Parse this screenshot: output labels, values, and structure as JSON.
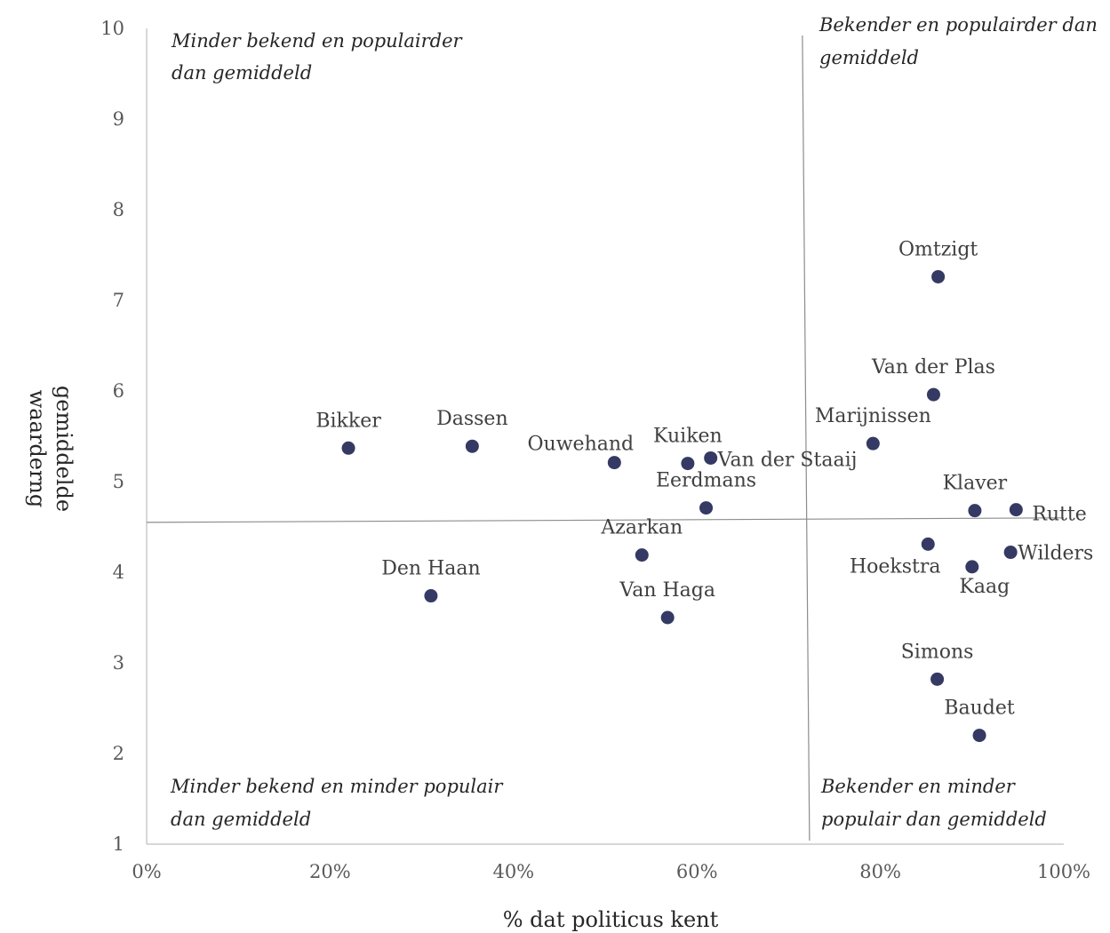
{
  "chart_data": {
    "type": "scatter",
    "xlabel": "% dat politicus kent",
    "ylabel": [
      "gemiddelde",
      "waarderng"
    ],
    "xlim": [
      0,
      100
    ],
    "ylim": [
      1,
      10
    ],
    "xticks": [
      "0%",
      "20%",
      "40%",
      "60%",
      "80%",
      "100%"
    ],
    "yticks": [
      "1",
      "2",
      "3",
      "4",
      "5",
      "6",
      "7",
      "8",
      "9",
      "10"
    ],
    "grid": false,
    "point_color": "#343A63",
    "line_color": "#8c8c8c",
    "reference_lines": {
      "x": 71.5,
      "y_left": 4.55,
      "y_right": 4.6
    },
    "quadrants": {
      "top_left": [
        "Minder bekend en populairder",
        "dan gemiddeld"
      ],
      "top_right": [
        "Bekender en populairder dan",
        "gemiddeld"
      ],
      "bottom_left": [
        "Minder bekend en minder populair",
        "dan gemiddeld"
      ],
      "bottom_right": [
        "Bekender en minder",
        "populair dan gemiddeld"
      ]
    },
    "points": [
      {
        "name": "Bikker",
        "x": 22,
        "y": 5.37
      },
      {
        "name": "Dassen",
        "x": 35.5,
        "y": 5.39
      },
      {
        "name": "Den Haan",
        "x": 31,
        "y": 3.74
      },
      {
        "name": "Ouwehand",
        "x": 51,
        "y": 5.21
      },
      {
        "name": "Kuiken",
        "x": 59,
        "y": 5.2
      },
      {
        "name": "Van der Staaij",
        "x": 61.5,
        "y": 5.26
      },
      {
        "name": "Eerdmans",
        "x": 61,
        "y": 4.71
      },
      {
        "name": "Azarkan",
        "x": 54,
        "y": 4.19
      },
      {
        "name": "Van Haga",
        "x": 56.8,
        "y": 3.5
      },
      {
        "name": "Omtzigt",
        "x": 86.3,
        "y": 7.26
      },
      {
        "name": "Van der Plas",
        "x": 85.8,
        "y": 5.96
      },
      {
        "name": "Marijnissen",
        "x": 79.2,
        "y": 5.42
      },
      {
        "name": "Klaver",
        "x": 90.3,
        "y": 4.68
      },
      {
        "name": "Rutte",
        "x": 94.8,
        "y": 4.69
      },
      {
        "name": "Hoekstra",
        "x": 85.2,
        "y": 4.31
      },
      {
        "name": "Wilders",
        "x": 94.2,
        "y": 4.22
      },
      {
        "name": "Kaag",
        "x": 90,
        "y": 4.06
      },
      {
        "name": "Simons",
        "x": 86.2,
        "y": 2.82
      },
      {
        "name": "Baudet",
        "x": 90.8,
        "y": 2.2
      }
    ]
  }
}
